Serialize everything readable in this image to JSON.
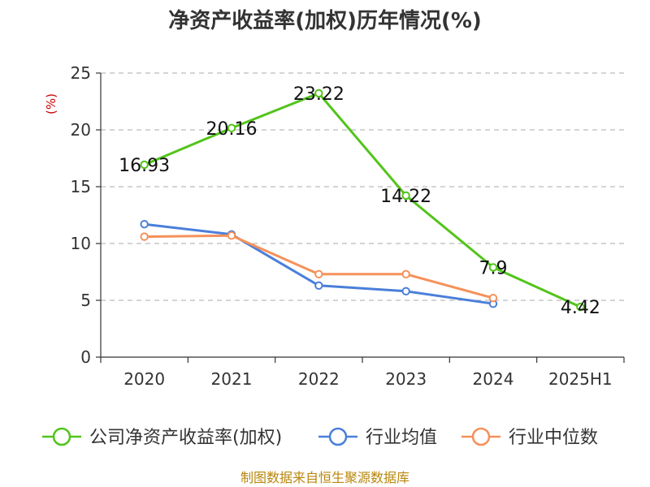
{
  "chart_data": {
    "type": "line",
    "title": "净资产收益率(加权)历年情况(%)",
    "ylabel": "(%)",
    "categories": [
      "2020",
      "2021",
      "2022",
      "2023",
      "2024",
      "2025H1"
    ],
    "ylim": [
      0,
      25
    ],
    "yticks": [
      0,
      5,
      10,
      15,
      20,
      25
    ],
    "grid": true,
    "legend_position": "bottom",
    "series": [
      {
        "name": "公司净资产收益率(加权)",
        "color": "#52c41a",
        "values": [
          16.93,
          20.16,
          23.22,
          14.22,
          7.9,
          4.42
        ],
        "data_labels": [
          "16.93",
          "20.16",
          "23.22",
          "14.22",
          "7.9",
          "4.42"
        ]
      },
      {
        "name": "行业均值",
        "color": "#4a7fd9",
        "values": [
          11.7,
          10.8,
          6.3,
          5.8,
          4.7,
          null
        ]
      },
      {
        "name": "行业中位数",
        "color": "#f5915a",
        "values": [
          10.6,
          10.7,
          7.3,
          7.3,
          5.2,
          null
        ]
      }
    ]
  },
  "footer": {
    "source": "制图数据来自恒生聚源数据库"
  }
}
